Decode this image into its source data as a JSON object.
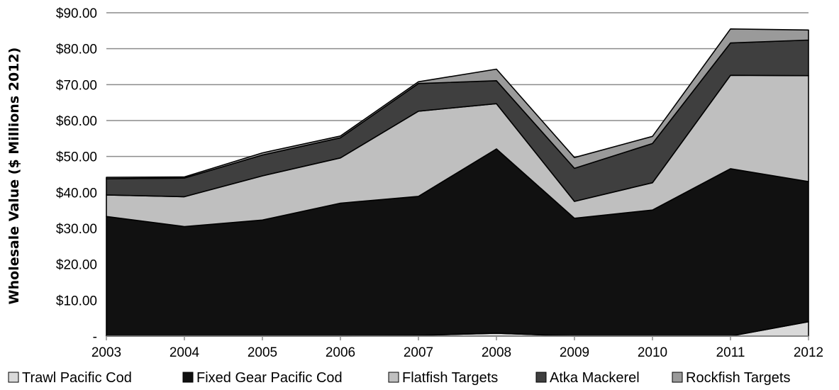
{
  "chart_data": {
    "type": "area",
    "stacked": true,
    "title": "",
    "xlabel": "",
    "ylabel": "Wholesale Value ($ Millions 2012)",
    "ylim": [
      0,
      90
    ],
    "y_ticks": [
      "-",
      "$10.00",
      "$20.00",
      "$30.00",
      "$40.00",
      "$50.00",
      "$60.00",
      "$70.00",
      "$80.00",
      "$90.00"
    ],
    "categories": [
      "2003",
      "2004",
      "2005",
      "2006",
      "2007",
      "2008",
      "2009",
      "2010",
      "2011",
      "2012"
    ],
    "grid": "horizontal",
    "legend_position": "bottom",
    "series": [
      {
        "name": "Trawl Pacific Cod",
        "color": "#d9d9d9",
        "values": [
          0,
          0,
          0,
          0,
          0.2,
          0.8,
          0,
          0,
          0,
          4.0
        ]
      },
      {
        "name": "Fixed Gear Pacific Cod",
        "color": "#111111",
        "values": [
          33.3,
          30.5,
          32.3,
          37.0,
          38.7,
          51.3,
          32.8,
          35.1,
          46.6,
          39.0
        ]
      },
      {
        "name": "Flatfish Targets",
        "color": "#bfbfbf",
        "values": [
          6.0,
          8.3,
          12.3,
          12.6,
          23.7,
          12.6,
          4.7,
          7.6,
          26.0,
          29.5
        ]
      },
      {
        "name": "Atka Mackerel",
        "color": "#3f3f3f",
        "values": [
          4.5,
          5.2,
          5.8,
          5.6,
          7.7,
          6.4,
          9.2,
          10.9,
          9.0,
          9.9
        ]
      },
      {
        "name": "Rockfish Targets",
        "color": "#9a9a9a",
        "values": [
          0.4,
          0.3,
          0.6,
          0.5,
          0.5,
          3.2,
          3.0,
          2.0,
          3.9,
          2.8
        ]
      }
    ]
  }
}
